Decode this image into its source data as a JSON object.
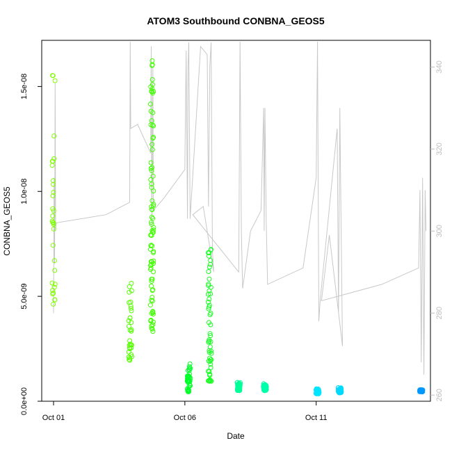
{
  "chart_data": {
    "type": "scatter",
    "title": "ATOM3 Southbound CONBNA_GEOS5",
    "xlabel": "Date",
    "ylabel": "CONBNA_GEOS5",
    "x_ticks": [
      {
        "label": "Oct 01",
        "day": 1.0
      },
      {
        "label": "Oct 06",
        "day": 6.0
      },
      {
        "label": "Oct 11",
        "day": 11.0
      }
    ],
    "xlim_days": [
      0.55,
      15.35
    ],
    "ylim": [
      0,
      1.72e-08
    ],
    "y_ticks": [
      {
        "label": "0.0e+00",
        "value": 0
      },
      {
        "label": "5.0e-09",
        "value": 5e-09
      },
      {
        "label": "1.0e-08",
        "value": 1e-08
      },
      {
        "label": "1.5e-08",
        "value": 1.5e-08
      }
    ],
    "y2lim": [
      258.5,
      346.5
    ],
    "y2_ticks": [
      {
        "label": "260",
        "value": 260
      },
      {
        "label": "280",
        "value": 280
      },
      {
        "label": "300",
        "value": 300
      },
      {
        "label": "320",
        "value": 320
      },
      {
        "label": "340",
        "value": 340
      }
    ],
    "series_colors": [
      "#7fff00",
      "#40ff00",
      "#00ff40",
      "#00ff99",
      "#00e5ff",
      "#00b3ff",
      "#0099ff"
    ],
    "line_color": "#c8c8c8",
    "clusters": [
      {
        "x": 1.0,
        "ymin": 4.4e-09,
        "ymax": 1.62e-08,
        "n": 32,
        "color": "#7fff00"
      },
      {
        "x": 3.92,
        "ymin": 1.95e-09,
        "ymax": 6e-09,
        "n": 32,
        "color": "#55ff00"
      },
      {
        "x": 4.75,
        "ymin": 3.3e-09,
        "ymax": 1.67e-08,
        "n": 90,
        "color": "#40ff00"
      },
      {
        "x": 6.15,
        "ymin": 4.5e-10,
        "ymax": 1.85e-09,
        "n": 45,
        "color": "#00ff2a"
      },
      {
        "x": 6.95,
        "ymin": 9.5e-10,
        "ymax": 7.5e-09,
        "n": 55,
        "color": "#15ff20"
      },
      {
        "x": 8.05,
        "ymin": 5e-10,
        "ymax": 9e-10,
        "n": 45,
        "color": "#00ff99"
      },
      {
        "x": 9.05,
        "ymin": 5e-10,
        "ymax": 8.5e-10,
        "n": 45,
        "color": "#00ffaa"
      },
      {
        "x": 11.05,
        "ymin": 3.5e-10,
        "ymax": 6e-10,
        "n": 40,
        "color": "#00e5ff"
      },
      {
        "x": 11.9,
        "ymin": 4e-10,
        "ymax": 6.5e-10,
        "n": 40,
        "color": "#00d9ff"
      },
      {
        "x": 15.0,
        "ymin": 4.5e-10,
        "ymax": 5.5e-10,
        "n": 45,
        "color": "#0099ff"
      }
    ],
    "secondary_line": [
      [
        1.0,
        280
      ],
      [
        1.02,
        313
      ],
      [
        1.04,
        292
      ],
      [
        1.06,
        336
      ],
      [
        1.08,
        300
      ],
      [
        1.1,
        302
      ],
      [
        3.0,
        304
      ],
      [
        3.9,
        307
      ],
      [
        3.92,
        350
      ],
      [
        3.94,
        325
      ],
      [
        4.2,
        326
      ],
      [
        4.7,
        319
      ],
      [
        4.72,
        345
      ],
      [
        4.74,
        300
      ],
      [
        4.78,
        340
      ],
      [
        4.8,
        305
      ],
      [
        5.2,
        308
      ],
      [
        6.0,
        315
      ],
      [
        6.05,
        344
      ],
      [
        6.1,
        303
      ],
      [
        6.12,
        340
      ],
      [
        6.15,
        346
      ],
      [
        6.2,
        303
      ],
      [
        6.6,
        345
      ],
      [
        6.85,
        343
      ],
      [
        6.9,
        306
      ],
      [
        6.95,
        340
      ],
      [
        7.0,
        346
      ],
      [
        7.05,
        295
      ],
      [
        7.1,
        290
      ],
      [
        6.7,
        306
      ],
      [
        6.3,
        304
      ],
      [
        8.05,
        290
      ],
      [
        8.1,
        354
      ],
      [
        8.15,
        300
      ],
      [
        8.2,
        286
      ],
      [
        8.5,
        300
      ],
      [
        8.9,
        305
      ],
      [
        9.0,
        330
      ],
      [
        9.02,
        300
      ],
      [
        9.05,
        330
      ],
      [
        9.1,
        302
      ],
      [
        9.15,
        287
      ],
      [
        10.5,
        291
      ],
      [
        11.0,
        313
      ],
      [
        11.05,
        354
      ],
      [
        11.1,
        278
      ],
      [
        11.15,
        283
      ],
      [
        11.8,
        325
      ],
      [
        11.85,
        280
      ],
      [
        11.9,
        330
      ],
      [
        11.95,
        300
      ],
      [
        12.0,
        272
      ],
      [
        11.5,
        299
      ],
      [
        11.2,
        283
      ],
      [
        13.5,
        287
      ],
      [
        14.9,
        291
      ],
      [
        14.95,
        310
      ],
      [
        15.0,
        268
      ],
      [
        15.05,
        313
      ],
      [
        15.1,
        265
      ],
      [
        15.15,
        310
      ],
      [
        15.18,
        300
      ]
    ]
  }
}
